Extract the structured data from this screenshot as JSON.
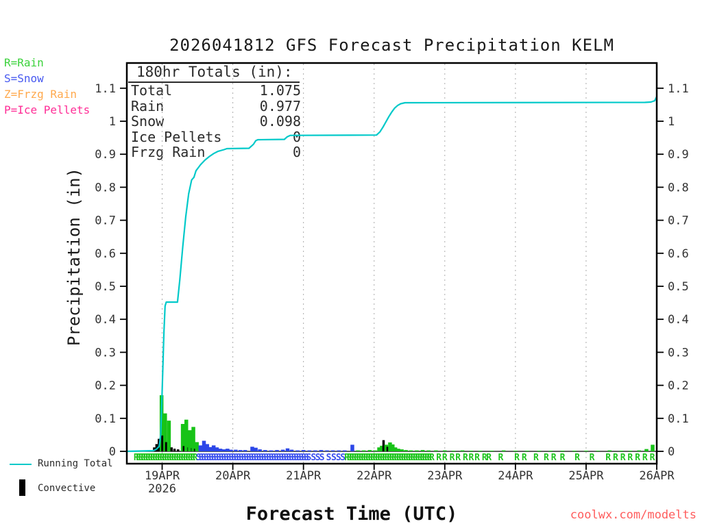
{
  "title": "2026041812 GFS Forecast Precipitation KELM",
  "watermark": "coolwx.com/modelts",
  "type_legend": {
    "items": [
      {
        "label": "R=Rain",
        "color": "#3bd23b"
      },
      {
        "label": "S=Snow",
        "color": "#4759f0"
      },
      {
        "label": "Z=Frzg Rain",
        "color": "#ffa94d"
      },
      {
        "label": "P=Ice Pellets",
        "color": "#ff2d96"
      }
    ]
  },
  "totals_box": {
    "header": "180hr Totals (in):",
    "rows": [
      {
        "label": "Total",
        "value": "1.075"
      },
      {
        "label": "Rain",
        "value": "0.977"
      },
      {
        "label": "Snow",
        "value": "0.098"
      },
      {
        "label": "Ice Pellets",
        "value": "0"
      },
      {
        "label": "Frzg Rain",
        "value": "0"
      }
    ]
  },
  "bottom_legend": {
    "line_label": "Running Total",
    "bar_label": "Convective"
  },
  "colors": {
    "running_total_cyan": "#00c9c9",
    "rain_bar_green": "#17c317",
    "snow_bar_blue": "#2b46e8",
    "convective_black": "#000000",
    "letter_R_green": "#1fc51f",
    "letter_S_blue": "#3a50ee",
    "watermark_red": "#ff5c5c",
    "grid_gray": "#aaaaaa",
    "frame_black": "#000000",
    "tick_text": "#333333"
  },
  "chart_data": {
    "type": "line+bar",
    "title": "2026041812 GFS Forecast Precipitation KELM",
    "xlabel": "Forecast Time (UTC)",
    "ylabel": "Precipitation (in)",
    "ylim": [
      0,
      1.176
    ],
    "y_ticks": [
      "0",
      "0.1",
      "0.2",
      "0.3",
      "0.4",
      "0.5",
      "0.6",
      "0.7",
      "0.8",
      "0.9",
      "1",
      "1.1"
    ],
    "x_axis": {
      "start": "18APR 12UTC",
      "hours_span": 180,
      "day_ticks": [
        {
          "hour": 12,
          "label": "19APR",
          "year": "2026"
        },
        {
          "hour": 36,
          "label": "20APR"
        },
        {
          "hour": 60,
          "label": "21APR"
        },
        {
          "hour": 84,
          "label": "22APR"
        },
        {
          "hour": 108,
          "label": "23APR"
        },
        {
          "hour": 132,
          "label": "24APR"
        },
        {
          "hour": 156,
          "label": "25APR"
        },
        {
          "hour": 180,
          "label": "26APR"
        }
      ]
    },
    "running_total_line": {
      "name": "Running Total",
      "final_total_in": 1.075,
      "points": [
        [
          0,
          0
        ],
        [
          9,
          0.002
        ],
        [
          10,
          0.006
        ],
        [
          11,
          0.015
        ],
        [
          11.5,
          0.05
        ],
        [
          12,
          0.18
        ],
        [
          12.6,
          0.36
        ],
        [
          13,
          0.44
        ],
        [
          13.4,
          0.452
        ],
        [
          17.2,
          0.452
        ],
        [
          18,
          0.52
        ],
        [
          19,
          0.62
        ],
        [
          20,
          0.71
        ],
        [
          21,
          0.78
        ],
        [
          22,
          0.822
        ],
        [
          22.8,
          0.83
        ],
        [
          23.5,
          0.85
        ],
        [
          25,
          0.868
        ],
        [
          26.5,
          0.882
        ],
        [
          28,
          0.893
        ],
        [
          29.5,
          0.902
        ],
        [
          31,
          0.909
        ],
        [
          33,
          0.914
        ],
        [
          34,
          0.917
        ],
        [
          41.5,
          0.918
        ],
        [
          43,
          0.93
        ],
        [
          43.8,
          0.941
        ],
        [
          44.5,
          0.944
        ],
        [
          53.5,
          0.945
        ],
        [
          54.5,
          0.953
        ],
        [
          55.5,
          0.957
        ],
        [
          84.8,
          0.958
        ],
        [
          86,
          0.968
        ],
        [
          87,
          0.982
        ],
        [
          88,
          0.998
        ],
        [
          89,
          1.014
        ],
        [
          90,
          1.028
        ],
        [
          91,
          1.04
        ],
        [
          92,
          1.048
        ],
        [
          93,
          1.053
        ],
        [
          94.5,
          1.056
        ],
        [
          176,
          1.057
        ],
        [
          178,
          1.058
        ],
        [
          179.3,
          1.062
        ],
        [
          180,
          1.075
        ]
      ]
    },
    "bars": [
      [
        9.3,
        0.012,
        "conv"
      ],
      [
        10.1,
        0.022,
        "conv"
      ],
      [
        10.9,
        0.038,
        "conv"
      ],
      [
        11.8,
        0.17,
        "rain"
      ],
      [
        12.1,
        0.048,
        "conv"
      ],
      [
        13.0,
        0.115,
        "rain"
      ],
      [
        13.4,
        0.028,
        "conv"
      ],
      [
        14.0,
        0.018,
        "conv"
      ],
      [
        14.3,
        0.093,
        "rain"
      ],
      [
        15.2,
        0.012,
        "conv"
      ],
      [
        16.2,
        0.008,
        "conv"
      ],
      [
        17.4,
        0.006,
        "conv"
      ],
      [
        19.0,
        0.083,
        "rain"
      ],
      [
        19.4,
        0.016,
        "conv"
      ],
      [
        20.2,
        0.096,
        "rain"
      ],
      [
        21.0,
        0.012,
        "conv"
      ],
      [
        21.4,
        0.064,
        "rain"
      ],
      [
        22.2,
        0.01,
        "conv"
      ],
      [
        22.6,
        0.074,
        "rain"
      ],
      [
        23.2,
        0.008,
        "conv"
      ],
      [
        23.8,
        0.028,
        "rain"
      ],
      [
        25.0,
        0.018,
        "snow"
      ],
      [
        26.2,
        0.032,
        "snow"
      ],
      [
        27.3,
        0.022,
        "snow"
      ],
      [
        28.4,
        0.013,
        "snow"
      ],
      [
        29.5,
        0.018,
        "snow"
      ],
      [
        30.6,
        0.012,
        "snow"
      ],
      [
        31.8,
        0.008,
        "snow"
      ],
      [
        33,
        0.006,
        "snow"
      ],
      [
        34.2,
        0.008,
        "snow"
      ],
      [
        35.4,
        0.005,
        "snow"
      ],
      [
        37,
        0.005,
        "snow"
      ],
      [
        38.6,
        0.004,
        "snow"
      ],
      [
        40.2,
        0.004,
        "snow"
      ],
      [
        42.6,
        0.014,
        "snow"
      ],
      [
        43.8,
        0.011,
        "snow"
      ],
      [
        45.2,
        0.006,
        "snow"
      ],
      [
        47,
        0.004,
        "snow"
      ],
      [
        49,
        0.003,
        "snow"
      ],
      [
        51,
        0.004,
        "snow"
      ],
      [
        53,
        0.005,
        "snow"
      ],
      [
        54.6,
        0.009,
        "snow"
      ],
      [
        56,
        0.005,
        "snow"
      ],
      [
        58,
        0.003,
        "snow"
      ],
      [
        60,
        0.004,
        "snow"
      ],
      [
        62,
        0.003,
        "snow"
      ],
      [
        64,
        0.003,
        "snow"
      ],
      [
        66,
        0.004,
        "snow"
      ],
      [
        68,
        0.003,
        "snow"
      ],
      [
        70,
        0.003,
        "snow"
      ],
      [
        72,
        0.003,
        "snow"
      ],
      [
        74,
        0.003,
        "snow"
      ],
      [
        76.6,
        0.02,
        "snow"
      ],
      [
        78.5,
        0.003,
        "rain"
      ],
      [
        80.5,
        0.003,
        "rain"
      ],
      [
        82.5,
        0.004,
        "rain"
      ],
      [
        84.3,
        0.003,
        "rain"
      ],
      [
        85.7,
        0.012,
        "rain"
      ],
      [
        86.6,
        0.017,
        "rain"
      ],
      [
        87.2,
        0.034,
        "conv"
      ],
      [
        88.1,
        0.02,
        "rain"
      ],
      [
        88.6,
        0.014,
        "conv"
      ],
      [
        89.4,
        0.027,
        "rain"
      ],
      [
        90.3,
        0.021,
        "rain"
      ],
      [
        91.2,
        0.012,
        "rain"
      ],
      [
        92.2,
        0.008,
        "rain"
      ],
      [
        93.4,
        0.006,
        "rain"
      ],
      [
        94.8,
        0.004,
        "rain"
      ],
      [
        96.5,
        0.003,
        "rain"
      ],
      [
        98.5,
        0.003,
        "rain"
      ],
      [
        100.5,
        0.004,
        "rain"
      ],
      [
        102.5,
        0.003,
        "rain"
      ],
      [
        105,
        0.003,
        "rain"
      ],
      [
        108,
        0.003,
        "rain"
      ],
      [
        111,
        0.002,
        "rain"
      ],
      [
        114,
        0.003,
        "rain"
      ],
      [
        117,
        0.002,
        "rain"
      ],
      [
        120,
        0.002,
        "rain"
      ],
      [
        124,
        0.002,
        "rain"
      ],
      [
        128,
        0.003,
        "rain"
      ],
      [
        132,
        0.002,
        "rain"
      ],
      [
        136,
        0.002,
        "rain"
      ],
      [
        140,
        0.002,
        "rain"
      ],
      [
        144,
        0.002,
        "rain"
      ],
      [
        148,
        0.002,
        "rain"
      ],
      [
        152,
        0.002,
        "rain"
      ],
      [
        156,
        0.002,
        "rain"
      ],
      [
        160,
        0.002,
        "rain"
      ],
      [
        164,
        0.003,
        "rain"
      ],
      [
        168,
        0.002,
        "rain"
      ],
      [
        171,
        0.002,
        "rain"
      ],
      [
        174,
        0.003,
        "rain"
      ],
      [
        176.5,
        0.007,
        "rain"
      ],
      [
        178.6,
        0.02,
        "rain"
      ]
    ],
    "precip_type_markers": {
      "runs": [
        {
          "letter": "R",
          "from": 3.2,
          "to": 23.8,
          "step": 0.8
        },
        {
          "letter": "S",
          "from": 24.4,
          "to": 61.8,
          "step": 0.85
        },
        {
          "letter": "S",
          "list": [
            63.4,
            64.9,
            66.3,
            68.6,
            70.3,
            71.9,
            73.4
          ]
        },
        {
          "letter": "R",
          "from": 74.8,
          "to": 103.6,
          "step": 0.8
        },
        {
          "letter": "R",
          "list": [
            106,
            108,
            110.5,
            112.5,
            115,
            117,
            119,
            121.5,
            123,
            127,
            132.5,
            135,
            139,
            142.5,
            145,
            148,
            153,
            158,
            163.5,
            166,
            168.5,
            171,
            173.5,
            176,
            178.5
          ]
        }
      ]
    }
  }
}
